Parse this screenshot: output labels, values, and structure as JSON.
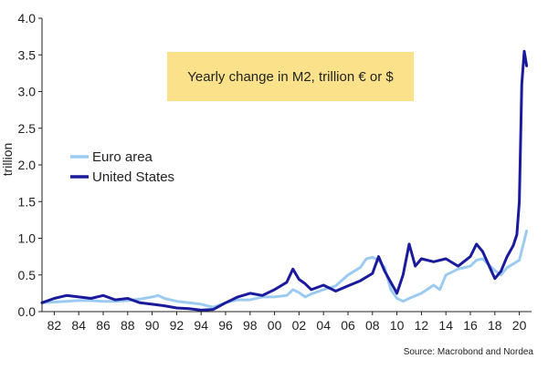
{
  "chart_data": {
    "type": "line",
    "title": "Yearly change in M2, trillion € or $",
    "xlabel": "",
    "ylabel": "trillion",
    "xlim": [
      1981,
      2021
    ],
    "ylim": [
      0,
      4.0
    ],
    "xticks": [
      1982,
      1984,
      1986,
      1988,
      1990,
      1992,
      1994,
      1996,
      1998,
      2000,
      2002,
      2004,
      2006,
      2008,
      2010,
      2012,
      2014,
      2016,
      2018,
      2020
    ],
    "xtick_labels": [
      "82",
      "84",
      "86",
      "88",
      "90",
      "92",
      "94",
      "96",
      "98",
      "00",
      "02",
      "04",
      "06",
      "08",
      "10",
      "12",
      "14",
      "16",
      "18",
      "20"
    ],
    "yticks": [
      0.0,
      0.5,
      1.0,
      1.5,
      2.0,
      2.5,
      3.0,
      3.5,
      4.0
    ],
    "ytick_labels": [
      "0.0",
      "0.5",
      "1.0",
      "1.5",
      "2.0",
      "2.5",
      "3.0",
      "3.5",
      "4.0"
    ],
    "legend_position": "left",
    "source": "Source: Macrobond and Nordea",
    "colors": {
      "euro": "#9ccbf2",
      "us": "#1a1a9c",
      "title_box": "#fbe28a",
      "axis": "#222222"
    },
    "series": [
      {
        "name": "Euro area",
        "color": "#9ccbf2",
        "x": [
          1981.0,
          1982.0,
          1983.0,
          1984.0,
          1985.0,
          1986.0,
          1987.0,
          1988.0,
          1989.0,
          1990.0,
          1990.5,
          1991.0,
          1992.0,
          1993.0,
          1994.0,
          1995.0,
          1996.0,
          1997.0,
          1998.0,
          1999.0,
          2000.0,
          2001.0,
          2001.5,
          2002.0,
          2002.5,
          2003.0,
          2004.0,
          2005.0,
          2006.0,
          2007.0,
          2007.5,
          2008.0,
          2008.5,
          2009.0,
          2009.5,
          2010.0,
          2010.5,
          2011.0,
          2012.0,
          2013.0,
          2013.5,
          2014.0,
          2015.0,
          2016.0,
          2016.5,
          2017.0,
          2018.0,
          2018.5,
          2019.0,
          2019.5,
          2020.0,
          2020.3,
          2020.6
        ],
        "y": [
          0.12,
          0.13,
          0.14,
          0.15,
          0.15,
          0.14,
          0.14,
          0.15,
          0.17,
          0.2,
          0.22,
          0.18,
          0.14,
          0.12,
          0.1,
          0.06,
          0.12,
          0.16,
          0.16,
          0.2,
          0.2,
          0.22,
          0.3,
          0.26,
          0.2,
          0.24,
          0.3,
          0.35,
          0.5,
          0.6,
          0.72,
          0.74,
          0.7,
          0.6,
          0.3,
          0.18,
          0.14,
          0.18,
          0.25,
          0.36,
          0.3,
          0.5,
          0.58,
          0.62,
          0.7,
          0.72,
          0.56,
          0.5,
          0.6,
          0.65,
          0.7,
          0.9,
          1.1
        ]
      },
      {
        "name": "United States",
        "color": "#1a1a9c",
        "x": [
          1981.0,
          1982.0,
          1983.0,
          1984.0,
          1985.0,
          1986.0,
          1987.0,
          1988.0,
          1989.0,
          1990.0,
          1991.0,
          1992.0,
          1993.0,
          1994.0,
          1995.0,
          1996.0,
          1997.0,
          1998.0,
          1999.0,
          2000.0,
          2001.0,
          2001.5,
          2002.0,
          2002.5,
          2003.0,
          2004.0,
          2005.0,
          2006.0,
          2007.0,
          2008.0,
          2008.5,
          2009.0,
          2009.5,
          2010.0,
          2010.5,
          2011.0,
          2011.5,
          2012.0,
          2013.0,
          2014.0,
          2015.0,
          2016.0,
          2016.5,
          2017.0,
          2018.0,
          2018.5,
          2019.0,
          2019.5,
          2019.8,
          2020.0,
          2020.2,
          2020.4,
          2020.6
        ],
        "y": [
          0.12,
          0.18,
          0.22,
          0.2,
          0.18,
          0.22,
          0.16,
          0.18,
          0.12,
          0.1,
          0.08,
          0.05,
          0.04,
          0.02,
          0.03,
          0.12,
          0.2,
          0.25,
          0.22,
          0.3,
          0.4,
          0.58,
          0.44,
          0.38,
          0.3,
          0.36,
          0.28,
          0.35,
          0.42,
          0.52,
          0.75,
          0.55,
          0.4,
          0.25,
          0.5,
          0.92,
          0.62,
          0.72,
          0.68,
          0.72,
          0.62,
          0.75,
          0.92,
          0.82,
          0.45,
          0.55,
          0.75,
          0.9,
          1.05,
          1.5,
          3.1,
          3.55,
          3.35
        ]
      }
    ]
  }
}
